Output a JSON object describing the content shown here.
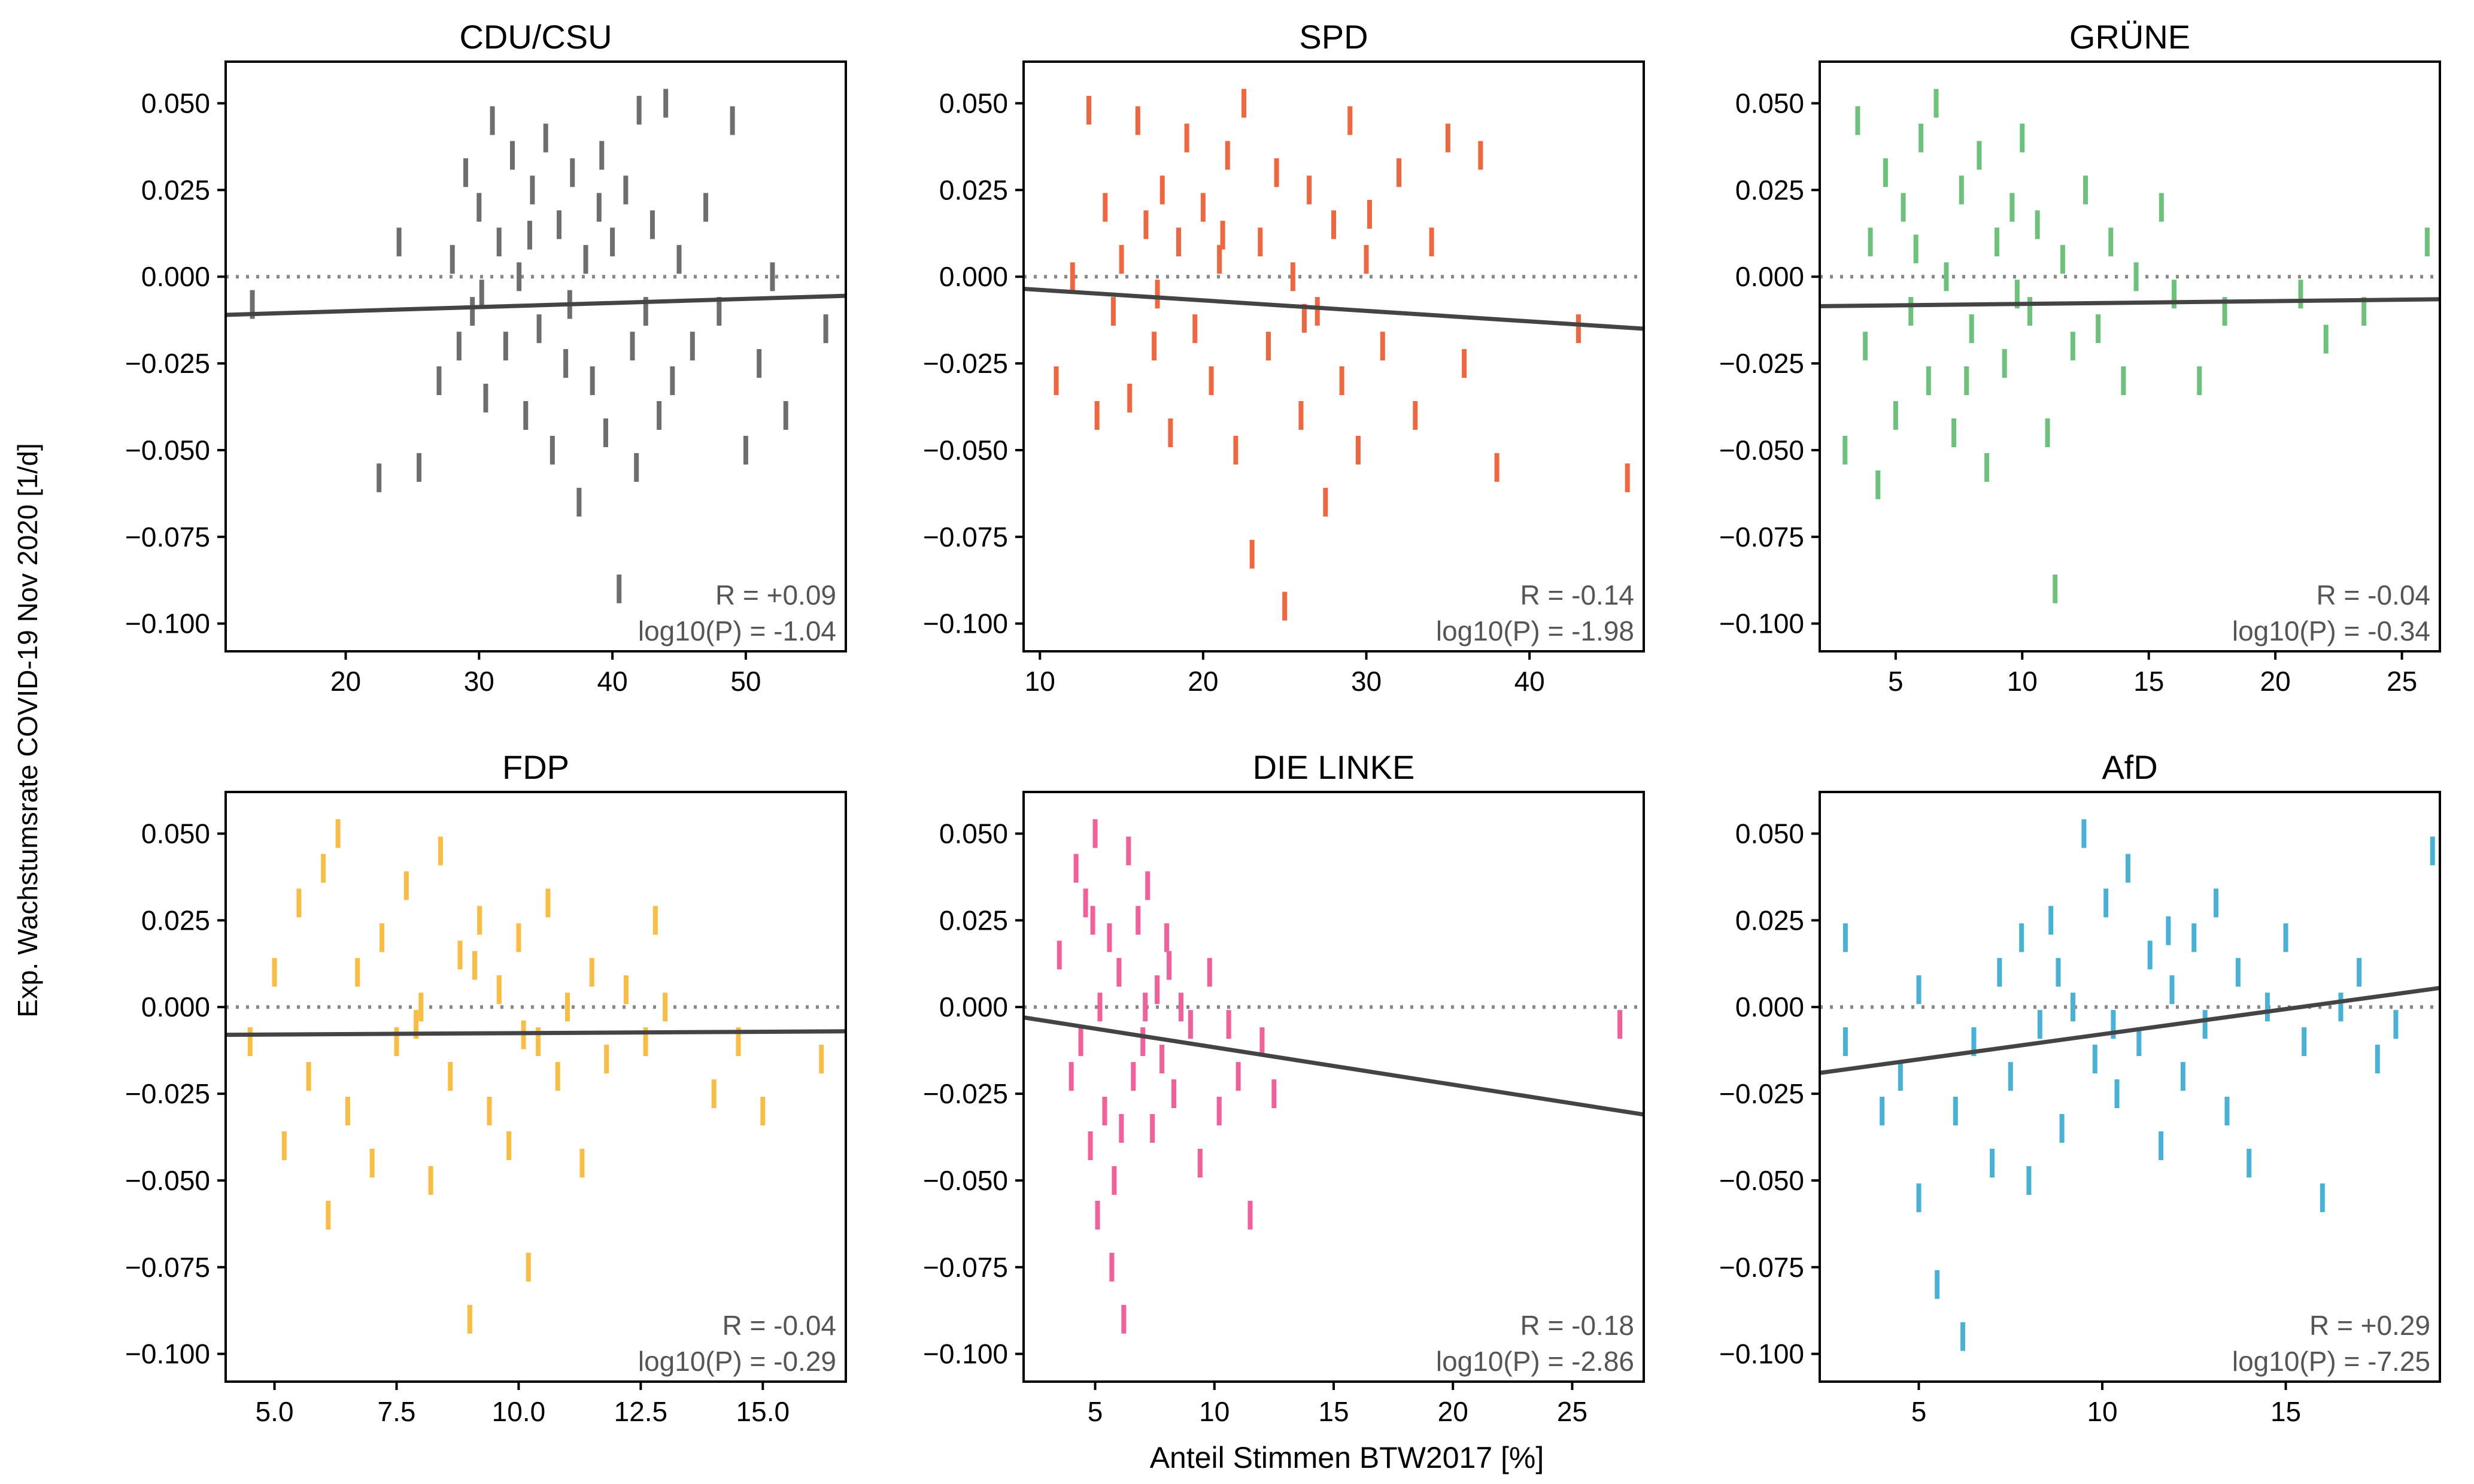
{
  "figure": {
    "ylabel": "Exp. Wachstumsrate COVID-19 Nov 2020 [1/d]",
    "xlabel": "Anteil Stimmen BTW2017 [%]"
  },
  "chart_data": [
    {
      "type": "scatter",
      "title": "CDU/CSU",
      "color": "#6e6e6e",
      "xlim": [
        11,
        57.5
      ],
      "ylim": [
        -0.108,
        0.062
      ],
      "xticks": [
        20,
        30,
        40,
        50
      ],
      "yticks": [
        0.05,
        0.025,
        0.0,
        -0.025,
        -0.05,
        -0.075,
        -0.1
      ],
      "ytick_labels": [
        "0.050",
        "0.025",
        "0.000",
        "−0.025",
        "−0.050",
        "−0.075",
        "−0.100"
      ],
      "fit_line": [
        [
          11,
          -0.011
        ],
        [
          57.5,
          -0.0055
        ]
      ],
      "annotation": [
        "R = +0.09",
        "log10(P) = -1.04"
      ],
      "points": [
        [
          13,
          -0.008
        ],
        [
          22.5,
          -0.058
        ],
        [
          24,
          0.01
        ],
        [
          25.5,
          -0.055
        ],
        [
          27,
          -0.03
        ],
        [
          28,
          0.005
        ],
        [
          28.5,
          -0.02
        ],
        [
          29,
          0.03
        ],
        [
          29.5,
          -0.01
        ],
        [
          30,
          0.02
        ],
        [
          30.5,
          -0.035
        ],
        [
          31,
          0.045
        ],
        [
          31.5,
          0.01
        ],
        [
          32,
          -0.02
        ],
        [
          32.5,
          0.035
        ],
        [
          33,
          0.0
        ],
        [
          33.5,
          -0.04
        ],
        [
          34,
          0.025
        ],
        [
          34.5,
          -0.015
        ],
        [
          35,
          0.04
        ],
        [
          35.5,
          -0.05
        ],
        [
          36,
          0.015
        ],
        [
          36.5,
          -0.025
        ],
        [
          37,
          0.03
        ],
        [
          37.5,
          -0.065
        ],
        [
          38,
          0.005
        ],
        [
          38.5,
          -0.03
        ],
        [
          39,
          0.02
        ],
        [
          39.5,
          -0.045
        ],
        [
          40,
          0.01
        ],
        [
          40.5,
          -0.09
        ],
        [
          41,
          0.025
        ],
        [
          41.5,
          -0.02
        ],
        [
          42,
          0.048
        ],
        [
          42.5,
          -0.01
        ],
        [
          43,
          0.015
        ],
        [
          43.5,
          -0.04
        ],
        [
          44,
          0.05
        ],
        [
          44.5,
          -0.03
        ],
        [
          45,
          0.005
        ],
        [
          46,
          -0.02
        ],
        [
          47,
          0.02
        ],
        [
          48,
          -0.01
        ],
        [
          49,
          0.045
        ],
        [
          50,
          -0.05
        ],
        [
          51,
          -0.025
        ],
        [
          52,
          0.0
        ],
        [
          53,
          -0.04
        ],
        [
          56,
          -0.015
        ],
        [
          30.2,
          -0.005
        ],
        [
          33.8,
          0.012
        ],
        [
          36.8,
          -0.008
        ],
        [
          39.2,
          0.035
        ],
        [
          41.8,
          -0.055
        ]
      ]
    },
    {
      "type": "scatter",
      "title": "SPD",
      "color": "#f0673f",
      "xlim": [
        9,
        47
      ],
      "ylim": [
        -0.108,
        0.062
      ],
      "xticks": [
        10,
        20,
        30,
        40
      ],
      "yticks": [
        0.05,
        0.025,
        0.0,
        -0.025,
        -0.05,
        -0.075,
        -0.1
      ],
      "ytick_labels": [
        "0.050",
        "0.025",
        "0.000",
        "−0.025",
        "−0.050",
        "−0.075",
        "−0.100"
      ],
      "fit_line": [
        [
          9,
          -0.0035
        ],
        [
          47,
          -0.015
        ]
      ],
      "annotation": [
        "R = -0.14",
        "log10(P) = -1.98"
      ],
      "points": [
        [
          11,
          -0.03
        ],
        [
          12,
          0.0
        ],
        [
          13,
          0.048
        ],
        [
          13.5,
          -0.04
        ],
        [
          14,
          0.02
        ],
        [
          14.5,
          -0.01
        ],
        [
          15,
          0.005
        ],
        [
          15.5,
          -0.035
        ],
        [
          16,
          0.045
        ],
        [
          16.5,
          0.015
        ],
        [
          17,
          -0.02
        ],
        [
          17.5,
          0.025
        ],
        [
          18,
          -0.045
        ],
        [
          18.5,
          0.01
        ],
        [
          19,
          0.04
        ],
        [
          19.5,
          -0.015
        ],
        [
          20,
          0.02
        ],
        [
          20.5,
          -0.03
        ],
        [
          21,
          0.005
        ],
        [
          21.5,
          0.035
        ],
        [
          22,
          -0.05
        ],
        [
          22.5,
          0.05
        ],
        [
          23,
          -0.08
        ],
        [
          23.5,
          0.01
        ],
        [
          24,
          -0.02
        ],
        [
          24.5,
          0.03
        ],
        [
          25,
          -0.095
        ],
        [
          25.5,
          0.0
        ],
        [
          26,
          -0.04
        ],
        [
          26.5,
          0.025
        ],
        [
          27,
          -0.01
        ],
        [
          27.5,
          -0.065
        ],
        [
          28,
          0.015
        ],
        [
          28.5,
          -0.03
        ],
        [
          29,
          0.045
        ],
        [
          29.5,
          -0.05
        ],
        [
          30,
          0.005
        ],
        [
          31,
          -0.02
        ],
        [
          32,
          0.03
        ],
        [
          33,
          -0.04
        ],
        [
          34,
          0.01
        ],
        [
          35,
          0.04
        ],
        [
          36,
          -0.025
        ],
        [
          37,
          0.035
        ],
        [
          38,
          -0.055
        ],
        [
          43,
          -0.015
        ],
        [
          46,
          -0.058
        ],
        [
          17.2,
          -0.005
        ],
        [
          21.2,
          0.012
        ],
        [
          26.2,
          -0.012
        ],
        [
          30.2,
          0.018
        ]
      ]
    },
    {
      "type": "scatter",
      "title": "GRÜNE",
      "color": "#6cc27a",
      "xlim": [
        2,
        26.5
      ],
      "ylim": [
        -0.108,
        0.062
      ],
      "xticks": [
        5,
        10,
        15,
        20,
        25
      ],
      "yticks": [
        0.05,
        0.025,
        0.0,
        -0.025,
        -0.05,
        -0.075,
        -0.1
      ],
      "ytick_labels": [
        "0.050",
        "0.025",
        "0.000",
        "−0.025",
        "−0.050",
        "−0.075",
        "−0.100"
      ],
      "fit_line": [
        [
          2,
          -0.0085
        ],
        [
          26.5,
          -0.0065
        ]
      ],
      "annotation": [
        "R = -0.04",
        "log10(P) = -0.34"
      ],
      "points": [
        [
          3,
          -0.05
        ],
        [
          3.5,
          0.045
        ],
        [
          3.8,
          -0.02
        ],
        [
          4,
          0.01
        ],
        [
          4.3,
          -0.06
        ],
        [
          4.6,
          0.03
        ],
        [
          5,
          -0.04
        ],
        [
          5.3,
          0.02
        ],
        [
          5.6,
          -0.01
        ],
        [
          6,
          0.04
        ],
        [
          6.3,
          -0.03
        ],
        [
          6.6,
          0.05
        ],
        [
          7,
          0.0
        ],
        [
          7.3,
          -0.045
        ],
        [
          7.6,
          0.025
        ],
        [
          8,
          -0.015
        ],
        [
          8.3,
          0.035
        ],
        [
          8.6,
          -0.055
        ],
        [
          9,
          0.01
        ],
        [
          9.3,
          -0.025
        ],
        [
          9.6,
          0.02
        ],
        [
          10,
          0.04
        ],
        [
          10.3,
          -0.01
        ],
        [
          10.6,
          0.015
        ],
        [
          11,
          -0.045
        ],
        [
          11.3,
          -0.09
        ],
        [
          11.6,
          0.005
        ],
        [
          12,
          -0.02
        ],
        [
          12.5,
          0.025
        ],
        [
          13,
          -0.015
        ],
        [
          13.5,
          0.01
        ],
        [
          14,
          -0.03
        ],
        [
          14.5,
          0.0
        ],
        [
          15.5,
          0.02
        ],
        [
          16,
          -0.005
        ],
        [
          17,
          -0.03
        ],
        [
          18,
          -0.01
        ],
        [
          21,
          -0.005
        ],
        [
          22,
          -0.018
        ],
        [
          23.5,
          -0.01
        ],
        [
          26,
          0.01
        ],
        [
          5.8,
          0.008
        ],
        [
          7.8,
          -0.03
        ],
        [
          9.8,
          -0.005
        ]
      ]
    },
    {
      "type": "scatter",
      "title": "FDP",
      "color": "#f9bd42",
      "xlim": [
        4,
        16.7
      ],
      "ylim": [
        -0.108,
        0.062
      ],
      "xticks": [
        5.0,
        7.5,
        10.0,
        12.5,
        15.0
      ],
      "xtick_labels": [
        "5.0",
        "7.5",
        "10.0",
        "12.5",
        "15.0"
      ],
      "yticks": [
        0.05,
        0.025,
        0.0,
        -0.025,
        -0.05,
        -0.075,
        -0.1
      ],
      "ytick_labels": [
        "0.050",
        "0.025",
        "0.000",
        "−0.025",
        "−0.050",
        "−0.075",
        "−0.100"
      ],
      "fit_line": [
        [
          4,
          -0.008
        ],
        [
          16.7,
          -0.007
        ]
      ],
      "annotation": [
        "R = -0.04",
        "log10(P) = -0.29"
      ],
      "points": [
        [
          4.5,
          -0.01
        ],
        [
          5,
          0.01
        ],
        [
          5.2,
          -0.04
        ],
        [
          5.5,
          0.03
        ],
        [
          5.7,
          -0.02
        ],
        [
          6,
          0.04
        ],
        [
          6.1,
          -0.06
        ],
        [
          6.3,
          0.05
        ],
        [
          6.5,
          -0.03
        ],
        [
          6.7,
          0.01
        ],
        [
          7,
          -0.045
        ],
        [
          7.2,
          0.02
        ],
        [
          7.5,
          -0.01
        ],
        [
          7.7,
          0.035
        ],
        [
          8,
          0.0
        ],
        [
          8.2,
          -0.05
        ],
        [
          8.4,
          0.045
        ],
        [
          8.6,
          -0.02
        ],
        [
          8.8,
          0.015
        ],
        [
          9,
          -0.09
        ],
        [
          9.2,
          0.025
        ],
        [
          9.4,
          -0.03
        ],
        [
          9.6,
          0.005
        ],
        [
          9.8,
          -0.04
        ],
        [
          10,
          0.02
        ],
        [
          10.2,
          -0.075
        ],
        [
          10.4,
          -0.01
        ],
        [
          10.6,
          0.03
        ],
        [
          10.8,
          -0.02
        ],
        [
          11,
          0.0
        ],
        [
          11.3,
          -0.045
        ],
        [
          11.5,
          0.01
        ],
        [
          11.8,
          -0.015
        ],
        [
          12.2,
          0.005
        ],
        [
          12.6,
          -0.01
        ],
        [
          12.8,
          0.025
        ],
        [
          13,
          0.0
        ],
        [
          14,
          -0.025
        ],
        [
          14.5,
          -0.01
        ],
        [
          15,
          -0.03
        ],
        [
          16.2,
          -0.015
        ],
        [
          7.9,
          -0.005
        ],
        [
          9.1,
          0.012
        ],
        [
          10.1,
          -0.008
        ]
      ]
    },
    {
      "type": "scatter",
      "title": "DIE LINKE",
      "color": "#f45e9b",
      "xlim": [
        2,
        28
      ],
      "ylim": [
        -0.108,
        0.062
      ],
      "xticks": [
        5,
        10,
        15,
        20,
        25
      ],
      "yticks": [
        0.05,
        0.025,
        0.0,
        -0.025,
        -0.05,
        -0.075,
        -0.1
      ],
      "ytick_labels": [
        "0.050",
        "0.025",
        "0.000",
        "−0.025",
        "−0.050",
        "−0.075",
        "−0.100"
      ],
      "fit_line": [
        [
          2,
          -0.003
        ],
        [
          28,
          -0.031
        ]
      ],
      "annotation": [
        "R = -0.18",
        "log10(P) = -2.86"
      ],
      "points": [
        [
          3.5,
          0.015
        ],
        [
          4,
          -0.02
        ],
        [
          4.2,
          0.04
        ],
        [
          4.4,
          -0.01
        ],
        [
          4.6,
          0.03
        ],
        [
          4.8,
          -0.04
        ],
        [
          5,
          0.05
        ],
        [
          5.2,
          0.0
        ],
        [
          5.4,
          -0.03
        ],
        [
          5.6,
          0.02
        ],
        [
          5.8,
          -0.05
        ],
        [
          6,
          0.01
        ],
        [
          6.2,
          -0.09
        ],
        [
          6.4,
          0.045
        ],
        [
          6.6,
          -0.02
        ],
        [
          6.8,
          0.025
        ],
        [
          7,
          -0.01
        ],
        [
          7.2,
          0.035
        ],
        [
          7.4,
          -0.035
        ],
        [
          7.6,
          0.005
        ],
        [
          7.8,
          -0.015
        ],
        [
          8,
          0.02
        ],
        [
          8.3,
          -0.025
        ],
        [
          8.6,
          0.0
        ],
        [
          9,
          -0.005
        ],
        [
          9.4,
          -0.045
        ],
        [
          9.8,
          0.01
        ],
        [
          10.2,
          -0.03
        ],
        [
          10.6,
          -0.005
        ],
        [
          11,
          -0.02
        ],
        [
          11.5,
          -0.06
        ],
        [
          12,
          -0.01
        ],
        [
          12.5,
          -0.025
        ],
        [
          27,
          -0.005
        ],
        [
          5.1,
          -0.06
        ],
        [
          6.1,
          -0.035
        ],
        [
          7.1,
          0.0
        ],
        [
          8.1,
          0.012
        ],
        [
          5.7,
          -0.075
        ],
        [
          4.9,
          0.025
        ]
      ]
    },
    {
      "type": "scatter",
      "title": "AfD",
      "color": "#47b1d6",
      "xlim": [
        2.3,
        19.2
      ],
      "ylim": [
        -0.108,
        0.062
      ],
      "xticks": [
        5,
        10,
        15
      ],
      "yticks": [
        0.05,
        0.025,
        0.0,
        -0.025,
        -0.05,
        -0.075,
        -0.1
      ],
      "ytick_labels": [
        "0.050",
        "0.025",
        "0.000",
        "−0.025",
        "−0.050",
        "−0.075",
        "−0.100"
      ],
      "fit_line": [
        [
          2.3,
          -0.019
        ],
        [
          19.2,
          0.0055
        ]
      ],
      "annotation": [
        "R = +0.29",
        "log10(P) = -7.25"
      ],
      "points": [
        [
          3,
          0.02
        ],
        [
          3,
          -0.01
        ],
        [
          4,
          -0.03
        ],
        [
          4.5,
          -0.02
        ],
        [
          5,
          -0.055
        ],
        [
          5,
          0.005
        ],
        [
          5.5,
          -0.08
        ],
        [
          6,
          -0.03
        ],
        [
          6.2,
          -0.095
        ],
        [
          6.5,
          -0.01
        ],
        [
          7,
          -0.045
        ],
        [
          7.2,
          0.01
        ],
        [
          7.5,
          -0.02
        ],
        [
          7.8,
          0.02
        ],
        [
          8,
          -0.05
        ],
        [
          8.3,
          -0.005
        ],
        [
          8.6,
          0.025
        ],
        [
          8.9,
          -0.035
        ],
        [
          9.2,
          0.0
        ],
        [
          9.5,
          0.05
        ],
        [
          9.8,
          -0.015
        ],
        [
          10.1,
          0.03
        ],
        [
          10.4,
          -0.025
        ],
        [
          10.7,
          0.04
        ],
        [
          11,
          -0.01
        ],
        [
          11.3,
          0.015
        ],
        [
          11.6,
          -0.04
        ],
        [
          11.9,
          0.005
        ],
        [
          12.2,
          -0.02
        ],
        [
          12.5,
          0.02
        ],
        [
          12.8,
          -0.005
        ],
        [
          13.1,
          0.03
        ],
        [
          13.4,
          -0.03
        ],
        [
          13.7,
          0.01
        ],
        [
          14,
          -0.045
        ],
        [
          14.5,
          0.0
        ],
        [
          15,
          0.02
        ],
        [
          15.5,
          -0.01
        ],
        [
          16,
          -0.055
        ],
        [
          16.5,
          0.0
        ],
        [
          17,
          0.01
        ],
        [
          17.5,
          -0.015
        ],
        [
          18,
          -0.005
        ],
        [
          19,
          0.045
        ],
        [
          8.8,
          0.01
        ],
        [
          10.3,
          -0.005
        ],
        [
          11.8,
          0.022
        ]
      ]
    }
  ]
}
